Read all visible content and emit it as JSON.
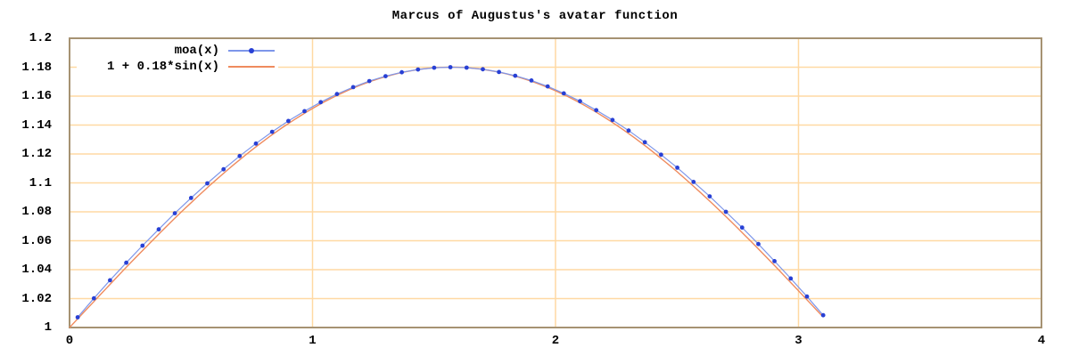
{
  "title": "Marcus of Augustus's avatar function",
  "legend": {
    "position": "top-left",
    "items": [
      {
        "label": "moa(x)",
        "series": "moa",
        "marker": "dot-on-line"
      },
      {
        "label": "1 + 0.18*sin(x)",
        "series": "sine",
        "marker": "line"
      }
    ]
  },
  "axes": {
    "x": {
      "min": 0,
      "max": 4,
      "tick_labels": [
        "0",
        "1",
        "2",
        "3",
        "4"
      ],
      "tick_values": [
        0,
        1,
        2,
        3,
        4
      ]
    },
    "y": {
      "min": 1,
      "max": 1.2,
      "tick_labels": [
        "1",
        "1.02",
        "1.04",
        "1.06",
        "1.08",
        "1.1",
        "1.12",
        "1.14",
        "1.16",
        "1.18",
        "1.2"
      ],
      "tick_values": [
        1,
        1.02,
        1.04,
        1.06,
        1.08,
        1.1,
        1.12,
        1.14,
        1.16,
        1.18,
        1.2
      ]
    },
    "grid": {
      "x_gridlines": [
        1,
        2,
        3
      ],
      "y_gridlines": [
        1.02,
        1.04,
        1.06,
        1.08,
        1.1,
        1.12,
        1.14,
        1.16,
        1.18
      ]
    }
  },
  "colors": {
    "background": "#ffffff",
    "border": "#a69272",
    "grid": "#ffd9a3",
    "text": "#000000",
    "moa_point": "#2840d5",
    "moa_line": "#7d96ea",
    "sine_line": "#ef8b5e"
  },
  "chart_data": {
    "type": "line",
    "title": "Marcus of Augustus's avatar function",
    "xlabel": "",
    "ylabel": "",
    "xlim": [
      0,
      4
    ],
    "ylim": [
      1,
      1.2
    ],
    "grid": true,
    "legend_position": "top-left",
    "series": [
      {
        "name": "moa(x)",
        "style": "linespoints",
        "points": [
          [
            0.0333,
            1.0071
          ],
          [
            0.1,
            1.0202
          ],
          [
            0.1667,
            1.0327
          ],
          [
            0.2334,
            1.0448
          ],
          [
            0.3001,
            1.0566
          ],
          [
            0.3668,
            1.0679
          ],
          [
            0.4335,
            1.079
          ],
          [
            0.5002,
            1.0896
          ],
          [
            0.5669,
            1.0997
          ],
          [
            0.6336,
            1.1094
          ],
          [
            0.7003,
            1.1186
          ],
          [
            0.767,
            1.1272
          ],
          [
            0.8337,
            1.1353
          ],
          [
            0.9004,
            1.1428
          ],
          [
            0.9671,
            1.1496
          ],
          [
            1.0338,
            1.1558
          ],
          [
            1.1005,
            1.1614
          ],
          [
            1.1672,
            1.1662
          ],
          [
            1.2339,
            1.1704
          ],
          [
            1.3006,
            1.1738
          ],
          [
            1.3673,
            1.1765
          ],
          [
            1.434,
            1.1784
          ],
          [
            1.5007,
            1.1796
          ],
          [
            1.5674,
            1.18
          ],
          [
            1.6341,
            1.1797
          ],
          [
            1.7008,
            1.1786
          ],
          [
            1.7675,
            1.1767
          ],
          [
            1.8342,
            1.1741
          ],
          [
            1.9009,
            1.1708
          ],
          [
            1.9676,
            1.1667
          ],
          [
            2.0343,
            1.1619
          ],
          [
            2.101,
            1.1565
          ],
          [
            2.1677,
            1.1503
          ],
          [
            2.2344,
            1.1435
          ],
          [
            2.3011,
            1.1362
          ],
          [
            2.3678,
            1.1281
          ],
          [
            2.4345,
            1.1195
          ],
          [
            2.5012,
            1.1105
          ],
          [
            2.5679,
            1.1007
          ],
          [
            2.6346,
            1.0907
          ],
          [
            2.7013,
            1.08
          ],
          [
            2.768,
            1.0691
          ],
          [
            2.8347,
            1.0577
          ],
          [
            2.9014,
            1.0459
          ],
          [
            2.9681,
            1.0339
          ],
          [
            3.0348,
            1.0214
          ],
          [
            3.1015,
            1.0085
          ]
        ]
      },
      {
        "name": "1 + 0.18*sin(x)",
        "style": "line",
        "formula": {
          "fn": "sin",
          "offset": 1,
          "amplitude": 0.18,
          "x_range": [
            0,
            3.1
          ],
          "samples": 124
        }
      }
    ]
  }
}
